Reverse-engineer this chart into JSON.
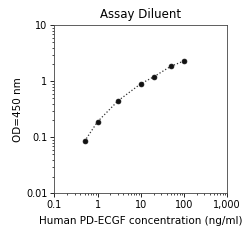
{
  "title": "Assay Diluent",
  "xlabel": "Human PD-ECGF concentration (ng/ml)",
  "ylabel": "OD=450 nm",
  "x_data": [
    0.5,
    1.0,
    3.0,
    10.0,
    20.0,
    50.0,
    100.0
  ],
  "y_data": [
    0.085,
    0.19,
    0.45,
    0.9,
    1.2,
    1.85,
    2.3
  ],
  "xlim": [
    0.1,
    1000
  ],
  "ylim": [
    0.01,
    10
  ],
  "xtick_vals": [
    0.1,
    1,
    10,
    100,
    1000
  ],
  "xtick_labels": [
    "0.1",
    "1",
    "10",
    "100",
    "1,000"
  ],
  "ytick_vals": [
    0.01,
    0.1,
    1,
    10
  ],
  "ytick_labels": [
    "0.01",
    "0.1",
    "1",
    "10"
  ],
  "line_color": "#333333",
  "marker_color": "#111111",
  "marker_style": "o",
  "marker_size": 3.5,
  "line_style": ":",
  "line_width": 0.9,
  "title_fontsize": 8.5,
  "label_fontsize": 7.5,
  "tick_fontsize": 7,
  "background_color": "#ffffff",
  "spine_color": "#444444"
}
